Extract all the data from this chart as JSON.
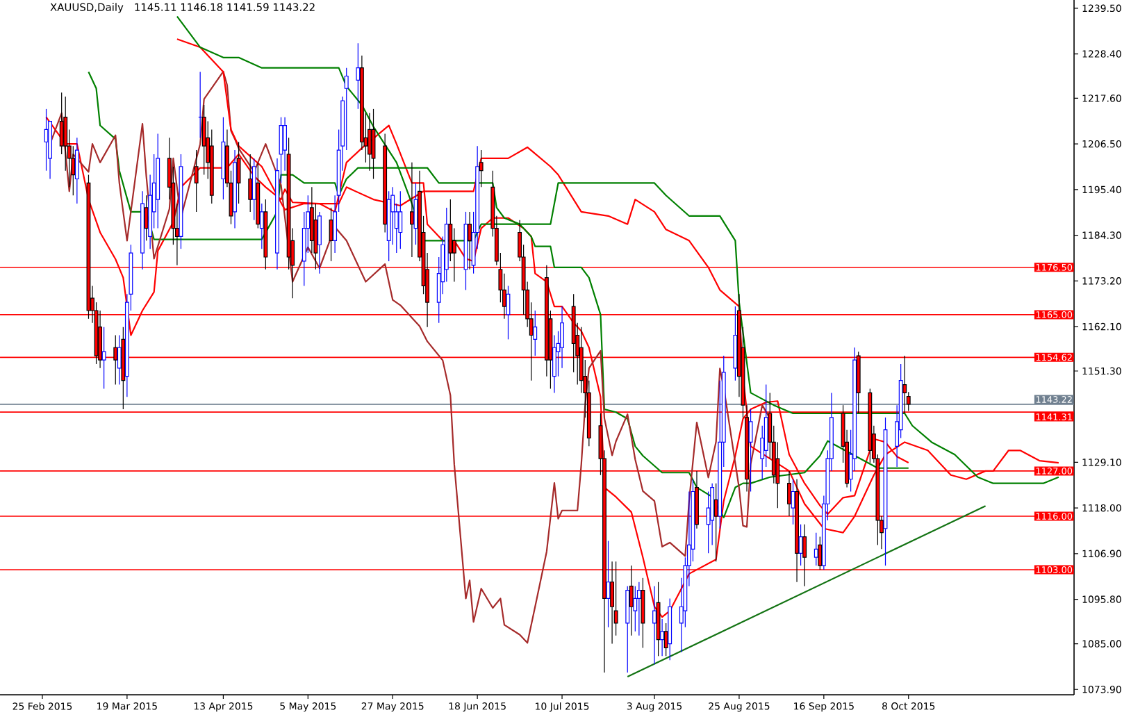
{
  "chart_data": {
    "type": "candlestick",
    "title": "XAUUSD,Daily",
    "subtitle": "1145.11 1146.18 1141.59 1143.22",
    "x": [
      "2015-02-26",
      "2015-02-27",
      "2015-03-02",
      "2015-03-03",
      "2015-03-04",
      "2015-03-05",
      "2015-03-06",
      "2015-03-09",
      "2015-03-10",
      "2015-03-11",
      "2015-03-12",
      "2015-03-13",
      "2015-03-16",
      "2015-03-17",
      "2015-03-18",
      "2015-03-19",
      "2015-03-20",
      "2015-03-23",
      "2015-03-24",
      "2015-03-25",
      "2015-03-26",
      "2015-03-27",
      "2015-03-30",
      "2015-03-31",
      "2015-04-01",
      "2015-04-02",
      "2015-04-06",
      "2015-04-07",
      "2015-04-08",
      "2015-04-09",
      "2015-04-10",
      "2015-04-13",
      "2015-04-14",
      "2015-04-15",
      "2015-04-16",
      "2015-04-17",
      "2015-04-20",
      "2015-04-21",
      "2015-04-22",
      "2015-04-23",
      "2015-04-24",
      "2015-04-27",
      "2015-04-28",
      "2015-04-29",
      "2015-04-30",
      "2015-05-01",
      "2015-05-04",
      "2015-05-05",
      "2015-05-06",
      "2015-05-07",
      "2015-05-08",
      "2015-05-11",
      "2015-05-12",
      "2015-05-13",
      "2015-05-14",
      "2015-05-15",
      "2015-05-18",
      "2015-05-19",
      "2015-05-20",
      "2015-05-21",
      "2015-05-22",
      "2015-05-25",
      "2015-05-26",
      "2015-05-27",
      "2015-05-28",
      "2015-05-29",
      "2015-06-01",
      "2015-06-02",
      "2015-06-03",
      "2015-06-04",
      "2015-06-05",
      "2015-06-08",
      "2015-06-09",
      "2015-06-10",
      "2015-06-11",
      "2015-06-12",
      "2015-06-15",
      "2015-06-16",
      "2015-06-17",
      "2015-06-18",
      "2015-06-19",
      "2015-06-22",
      "2015-06-23",
      "2015-06-24",
      "2015-06-25",
      "2015-06-26",
      "2015-06-29",
      "2015-06-30",
      "2015-07-01",
      "2015-07-02",
      "2015-07-03",
      "2015-07-06",
      "2015-07-07",
      "2015-07-08",
      "2015-07-09",
      "2015-07-10",
      "2015-07-13",
      "2015-07-14",
      "2015-07-15",
      "2015-07-16",
      "2015-07-17",
      "2015-07-20",
      "2015-07-21",
      "2015-07-22",
      "2015-07-23",
      "2015-07-24",
      "2015-07-27",
      "2015-07-28",
      "2015-07-29",
      "2015-07-30",
      "2015-07-31",
      "2015-08-03",
      "2015-08-04",
      "2015-08-05",
      "2015-08-06",
      "2015-08-07",
      "2015-08-10",
      "2015-08-11",
      "2015-08-12",
      "2015-08-13",
      "2015-08-14",
      "2015-08-17",
      "2015-08-18",
      "2015-08-19",
      "2015-08-20",
      "2015-08-21",
      "2015-08-24",
      "2015-08-25",
      "2015-08-26",
      "2015-08-27",
      "2015-08-28",
      "2015-08-31",
      "2015-09-01",
      "2015-09-02",
      "2015-09-03",
      "2015-09-04",
      "2015-09-07",
      "2015-09-08",
      "2015-09-09",
      "2015-09-10",
      "2015-09-11",
      "2015-09-14",
      "2015-09-15",
      "2015-09-16",
      "2015-09-17",
      "2015-09-18",
      "2015-09-21",
      "2015-09-22",
      "2015-09-23",
      "2015-09-24",
      "2015-09-25",
      "2015-09-28",
      "2015-09-29",
      "2015-09-30",
      "2015-10-01",
      "2015-10-02",
      "2015-10-05",
      "2015-10-06",
      "2015-10-07",
      "2015-10-08"
    ],
    "ohlc": [
      [
        1207,
        1215,
        1200,
        1210
      ],
      [
        1203,
        1212,
        1198,
        1212
      ],
      [
        1212,
        1219,
        1204,
        1206
      ],
      [
        1213,
        1218,
        1200,
        1206
      ],
      [
        1206,
        1210,
        1196,
        1203
      ],
      [
        1203,
        1206,
        1194,
        1199
      ],
      [
        1198,
        1208,
        1192,
        1205
      ],
      [
        1197,
        1199,
        1164,
        1166
      ],
      [
        1169,
        1172,
        1163,
        1166
      ],
      [
        1166,
        1168,
        1153,
        1155
      ],
      [
        1162,
        1166,
        1152,
        1154
      ],
      [
        1154,
        1162,
        1147,
        1156
      ],
      [
        1157,
        1160,
        1148,
        1154
      ],
      [
        1152,
        1160,
        1148,
        1157
      ],
      [
        1159,
        1162,
        1142,
        1149
      ],
      [
        1150,
        1170,
        1145,
        1168
      ],
      [
        1170,
        1182,
        1166,
        1180
      ],
      [
        1180,
        1195,
        1176,
        1192
      ],
      [
        1191,
        1194,
        1183,
        1186
      ],
      [
        1184,
        1199,
        1181,
        1194
      ],
      [
        1190,
        1204,
        1186,
        1197
      ],
      [
        1193,
        1209,
        1186,
        1203
      ],
      [
        1203,
        1208,
        1193,
        1196
      ],
      [
        1197,
        1201,
        1182,
        1186
      ],
      [
        1186,
        1192,
        1177,
        1184
      ],
      [
        1184,
        1204,
        1181,
        1201
      ],
      [
        1201,
        1205,
        1190,
        1197
      ],
      [
        1213,
        1224,
        1208,
        1213
      ],
      [
        1213,
        1216,
        1199,
        1206
      ],
      [
        1208,
        1212,
        1198,
        1202
      ],
      [
        1206,
        1210,
        1192,
        1194
      ],
      [
        1198,
        1213,
        1193,
        1207
      ],
      [
        1206,
        1210,
        1196,
        1197
      ],
      [
        1197,
        1200,
        1187,
        1189
      ],
      [
        1190,
        1205,
        1186,
        1202
      ],
      [
        1203,
        1207,
        1192,
        1197
      ],
      [
        1198,
        1204,
        1190,
        1193
      ],
      [
        1193,
        1203,
        1188,
        1201
      ],
      [
        1197,
        1202,
        1186,
        1187
      ],
      [
        1186,
        1192,
        1181,
        1190
      ],
      [
        1190,
        1193,
        1176,
        1179
      ],
      [
        1180,
        1203,
        1176,
        1200
      ],
      [
        1204,
        1213,
        1197,
        1211
      ],
      [
        1205,
        1213,
        1200,
        1211
      ],
      [
        1204,
        1208,
        1176,
        1179
      ],
      [
        1183,
        1186,
        1169,
        1177
      ],
      [
        1178,
        1190,
        1172,
        1186
      ],
      [
        1186,
        1194,
        1180,
        1190
      ],
      [
        1191,
        1196,
        1180,
        1183
      ],
      [
        1188,
        1192,
        1176,
        1180
      ],
      [
        1182,
        1190,
        1175,
        1189
      ],
      [
        1188,
        1191,
        1178,
        1183
      ],
      [
        1183,
        1194,
        1180,
        1190
      ],
      [
        1194,
        1210,
        1190,
        1205
      ],
      [
        1206,
        1218,
        1200,
        1217
      ],
      [
        1220,
        1225,
        1205,
        1223
      ],
      [
        1222,
        1231,
        1215,
        1225
      ],
      [
        1225,
        1228,
        1205,
        1207
      ],
      [
        1208,
        1214,
        1202,
        1206
      ],
      [
        1210,
        1214,
        1200,
        1204
      ],
      [
        1210,
        1215,
        1198,
        1203
      ],
      [
        1206,
        1209,
        1185,
        1187
      ],
      [
        1183,
        1195,
        1178,
        1193
      ],
      [
        1190,
        1196,
        1182,
        1194
      ],
      [
        1186,
        1192,
        1180,
        1190
      ],
      [
        1185,
        1195,
        1181,
        1190
      ],
      [
        1190,
        1202,
        1179,
        1187
      ],
      [
        1186,
        1197,
        1182,
        1193
      ],
      [
        1195,
        1200,
        1178,
        1179
      ],
      [
        1185,
        1189,
        1170,
        1172
      ],
      [
        1176,
        1180,
        1162,
        1168
      ],
      [
        1168,
        1179,
        1163,
        1175
      ],
      [
        1173,
        1184,
        1170,
        1182
      ],
      [
        1176,
        1191,
        1173,
        1187
      ],
      [
        1187,
        1193,
        1178,
        1180
      ],
      [
        1183,
        1186,
        1173,
        1180
      ],
      [
        1176,
        1190,
        1171,
        1187
      ],
      [
        1187,
        1190,
        1176,
        1183
      ],
      [
        1177,
        1190,
        1175,
        1185
      ],
      [
        1185,
        1206,
        1181,
        1201
      ],
      [
        1202,
        1205,
        1196,
        1200
      ],
      [
        1196,
        1200,
        1184,
        1186
      ],
      [
        1186,
        1189,
        1177,
        1178
      ],
      [
        1176,
        1180,
        1168,
        1171
      ],
      [
        1171,
        1175,
        1164,
        1167
      ],
      [
        1165,
        1172,
        1159,
        1170
      ],
      [
        1185,
        1188,
        1178,
        1179
      ],
      [
        1179,
        1182,
        1165,
        1171
      ],
      [
        1171,
        1173,
        1162,
        1164
      ],
      [
        1164,
        1168,
        1149,
        1160
      ],
      [
        1159,
        1166,
        1155,
        1162
      ],
      [
        1174,
        1177,
        1150,
        1154
      ],
      [
        1164,
        1166,
        1147,
        1154
      ],
      [
        1150,
        1160,
        1146,
        1157
      ],
      [
        1156,
        1161,
        1150,
        1158
      ],
      [
        1157,
        1167,
        1152,
        1163
      ],
      [
        1167,
        1170,
        1151,
        1158
      ],
      [
        1160,
        1163,
        1148,
        1155
      ],
      [
        1157,
        1162,
        1146,
        1149
      ],
      [
        1150,
        1154,
        1140,
        1146
      ],
      [
        1146,
        1149,
        1133,
        1135
      ],
      [
        1138,
        1141,
        1126,
        1130
      ],
      [
        1130,
        1132,
        1078,
        1096
      ],
      [
        1096,
        1110,
        1089,
        1100
      ],
      [
        1100,
        1105,
        1085,
        1094
      ],
      [
        1093,
        1105,
        1087,
        1090
      ],
      [
        1090,
        1099,
        1078,
        1098
      ],
      [
        1099,
        1104,
        1087,
        1094
      ],
      [
        1093,
        1099,
        1088,
        1096
      ],
      [
        1096,
        1100,
        1087,
        1098
      ],
      [
        1098,
        1101,
        1084,
        1090
      ],
      [
        1090,
        1099,
        1080,
        1093
      ],
      [
        1095,
        1100,
        1082,
        1086
      ],
      [
        1086,
        1091,
        1082,
        1088
      ],
      [
        1088,
        1090,
        1082,
        1084
      ],
      [
        1085,
        1096,
        1081,
        1094
      ],
      [
        1090,
        1101,
        1083,
        1094
      ],
      [
        1093,
        1106,
        1089,
        1104
      ],
      [
        1104,
        1122,
        1099,
        1109
      ],
      [
        1108,
        1125,
        1105,
        1122
      ],
      [
        1123,
        1127,
        1113,
        1114
      ],
      [
        1114,
        1122,
        1107,
        1118
      ],
      [
        1115,
        1124,
        1109,
        1123
      ],
      [
        1120,
        1124,
        1105,
        1116
      ],
      [
        1116,
        1149,
        1113,
        1134
      ],
      [
        1134,
        1155,
        1128,
        1151
      ],
      [
        1152,
        1167,
        1149,
        1160
      ],
      [
        1166,
        1170,
        1145,
        1150
      ],
      [
        1157,
        1162,
        1140,
        1143
      ],
      [
        1140,
        1143,
        1122,
        1125
      ],
      [
        1134,
        1142,
        1122,
        1139
      ],
      [
        1130,
        1138,
        1125,
        1135
      ],
      [
        1132,
        1148,
        1128,
        1140
      ],
      [
        1141,
        1146,
        1130,
        1134
      ],
      [
        1134,
        1138,
        1124,
        1126
      ],
      [
        1130,
        1134,
        1118,
        1124
      ],
      [
        1124,
        1127,
        1116,
        1119
      ],
      [
        1118,
        1125,
        1114,
        1122
      ],
      [
        1122,
        1125,
        1100,
        1107
      ],
      [
        1107,
        1114,
        1104,
        1111
      ],
      [
        1111,
        1114,
        1099,
        1106
      ],
      [
        1106,
        1112,
        1104,
        1108
      ],
      [
        1109,
        1111,
        1103,
        1104
      ],
      [
        1104,
        1121,
        1103,
        1119
      ],
      [
        1119,
        1132,
        1115,
        1130
      ],
      [
        1130,
        1146,
        1127,
        1140
      ],
      [
        1141,
        1143,
        1129,
        1133
      ],
      [
        1134,
        1137,
        1123,
        1124
      ],
      [
        1125,
        1137,
        1122,
        1131
      ],
      [
        1130,
        1157,
        1127,
        1154
      ],
      [
        1155,
        1156,
        1141,
        1146
      ],
      [
        1146,
        1147,
        1129,
        1132
      ],
      [
        1136,
        1138,
        1129,
        1130
      ],
      [
        1130,
        1131,
        1109,
        1115
      ],
      [
        1115,
        1116,
        1108,
        1112
      ],
      [
        1113,
        1140,
        1104,
        1137
      ],
      [
        1133,
        1143,
        1128,
        1139
      ],
      [
        1137,
        1153,
        1135,
        1149
      ],
      [
        1148,
        1155,
        1141,
        1146
      ],
      [
        1145.11,
        1146.18,
        1141.59,
        1143.22
      ]
    ],
    "series": [
      {
        "type": "line",
        "color": "#ff0000",
        "x": [
          "2015-02-26",
          "2015-03-03",
          "2015-03-06",
          "2015-03-09",
          "2015-03-12",
          "2015-03-16",
          "2015-03-18",
          "2015-03-20",
          "2015-03-23",
          "2015-03-26",
          "2015-03-27",
          "2015-03-31",
          "2015-04-02",
          "2015-04-07",
          "2015-04-14",
          "2015-04-17",
          "2015-04-21",
          "2015-04-24",
          "2015-04-28",
          "2015-04-29",
          "2015-05-01",
          "2015-05-08",
          "2015-05-12",
          "2015-05-15",
          "2015-05-19",
          "2015-05-26",
          "2015-05-28",
          "2015-06-01",
          "2015-06-04",
          "2015-06-05",
          "2015-06-09",
          "2015-06-12",
          "2015-06-15",
          "2015-06-17",
          "2015-06-19",
          "2015-06-22",
          "2015-06-26",
          "2015-06-30",
          "2015-07-02",
          "2015-07-03",
          "2015-07-06",
          "2015-07-08",
          "2015-07-10",
          "2015-07-13",
          "2015-07-15",
          "2015-07-17",
          "2015-07-20",
          "2015-07-21",
          "2015-07-24",
          "2015-07-28",
          "2015-07-31",
          "2015-08-03",
          "2015-08-05",
          "2015-08-07",
          "2015-08-12",
          "2015-08-19",
          "2015-08-21",
          "2015-08-24",
          "2015-08-26",
          "2015-08-28",
          "2015-09-01",
          "2015-09-04",
          "2015-09-07",
          "2015-09-11",
          "2015-09-15",
          "2015-09-17",
          "2015-09-21",
          "2015-09-24",
          "2015-09-29",
          "2015-10-02",
          "2015-10-05",
          "2015-10-08"
        ],
        "values": [
          1213,
          1206.5,
          1206.5,
          1193,
          1185,
          1178.5,
          1174,
          1160,
          1166,
          1170.5,
          1180.5,
          1187.5,
          1196,
          1200.7,
          1200.7,
          1204,
          1198.7,
          1196,
          1193,
          1195.5,
          1192.3,
          1192,
          1190,
          1202,
          1205.5,
          1211,
          1206.5,
          1197,
          1197,
          1187,
          1183,
          1183,
          1178.6,
          1178,
          1186,
          1188.5,
          1188.5,
          1186,
          1184,
          1175,
          1173,
          1167,
          1167,
          1163,
          1161,
          1157,
          1145,
          1123,
          1120.7,
          1117,
          1106,
          1094,
          1091.5,
          1093,
          1102,
          1105.5,
          1119.7,
          1130.7,
          1139.7,
          1142,
          1143.7,
          1144,
          1131,
          1124,
          1118.6,
          1116.5,
          1120.5,
          1121,
          1134.8,
          1134,
          1130.5,
          1129
        ]
      },
      {
        "type": "line",
        "color": "#008000",
        "x": [
          "2015-03-09",
          "2015-03-11",
          "2015-03-12",
          "2015-03-16",
          "2015-03-17",
          "2015-03-19",
          "2015-03-20",
          "2015-03-24",
          "2015-03-26",
          "2015-04-23",
          "2015-04-27",
          "2015-04-28",
          "2015-05-01",
          "2015-05-04",
          "2015-05-12",
          "2015-05-13",
          "2015-05-15",
          "2015-05-18",
          "2015-06-05",
          "2015-06-08",
          "2015-06-22",
          "2015-06-23",
          "2015-06-25",
          "2015-06-29",
          "2015-07-02",
          "2015-07-03",
          "2015-07-07",
          "2015-07-08",
          "2015-07-15",
          "2015-07-17",
          "2015-07-20",
          "2015-07-21",
          "2015-07-24",
          "2015-07-27",
          "2015-07-29",
          "2015-07-31",
          "2015-08-05",
          "2015-08-12",
          "2015-08-14",
          "2015-08-18",
          "2015-08-21",
          "2015-08-24",
          "2015-08-26",
          "2015-08-28",
          "2015-09-02",
          "2015-09-11",
          "2015-09-15",
          "2015-09-17",
          "2015-09-29",
          "2015-09-30",
          "2015-10-08"
        ],
        "values": [
          1224,
          1220,
          1211,
          1207.7,
          1200,
          1193.3,
          1190,
          1190,
          1183.3,
          1183.3,
          1190,
          1199,
          1199,
          1197,
          1197,
          1194,
          1198,
          1200.7,
          1200.7,
          1197,
          1197,
          1191,
          1188.5,
          1187,
          1184,
          1181.6,
          1181.6,
          1176.5,
          1176.5,
          1174,
          1165,
          1142,
          1141.3,
          1139.7,
          1133,
          1130.7,
          1126.6,
          1126.6,
          1123,
          1120.7,
          1115.7,
          1123,
          1124,
          1124,
          1125.5,
          1126.6,
          1130.7,
          1134.3,
          null,
          1127.7,
          1127.7
        ]
      },
      {
        "type": "line",
        "color": "#a52a2a",
        "x": [
          "2015-02-27",
          "2015-03-02",
          "2015-03-04",
          "2015-03-05",
          "2015-03-09",
          "2015-03-10",
          "2015-03-12",
          "2015-03-16",
          "2015-03-17",
          "2015-03-19",
          "2015-03-23",
          "2015-03-24",
          "2015-03-26",
          "2015-03-30",
          "2015-03-31",
          "2015-04-02",
          "2015-04-07",
          "2015-04-08",
          "2015-04-13",
          "2015-04-14",
          "2015-04-15",
          "2015-04-16",
          "2015-04-17",
          "2015-04-21",
          "2015-04-24",
          "2015-04-28",
          "2015-05-01",
          "2015-05-05",
          "2015-05-08",
          "2015-05-12",
          "2015-05-15",
          "2015-05-20",
          "2015-05-25",
          "2015-05-27",
          "2015-05-29",
          "2015-06-03",
          "2015-06-05",
          "2015-06-09",
          "2015-06-11",
          "2015-06-12",
          "2015-06-15",
          "2015-06-16",
          "2015-06-17",
          "2015-06-19",
          "2015-06-22",
          "2015-06-24",
          "2015-06-25",
          "2015-06-29",
          "2015-07-01",
          "2015-07-03",
          "2015-07-06",
          "2015-07-08",
          "2015-07-09",
          "2015-07-10",
          "2015-07-14",
          "2015-07-15",
          "2015-07-16",
          "2015-07-17",
          "2015-07-20",
          "2015-07-21",
          "2015-07-23",
          "2015-07-24",
          "2015-07-27",
          "2015-07-29",
          "2015-07-31",
          "2015-08-03",
          "2015-08-05",
          "2015-08-07",
          "2015-08-11",
          "2015-08-12",
          "2015-08-14",
          "2015-08-17",
          "2015-08-19",
          "2015-08-20",
          "2015-08-21",
          "2015-08-25",
          "2015-08-26",
          "2015-08-27",
          "2015-08-28",
          "2015-08-31",
          "2015-09-02"
        ],
        "values": [
          1206.5,
          1214,
          1195,
          1204,
          1199.7,
          1206.5,
          1202,
          1208.6,
          1197,
          1183,
          1211.4,
          1198.7,
          1178.6,
          1190.7,
          1203,
          1188.6,
          1206.5,
          1217.4,
          1224.1,
          1220.8,
          1209.7,
          1207.7,
          1205.4,
          1199.7,
          1206.5,
          1196.5,
          1173,
          1181.4,
          1176.3,
          1186.3,
          1183,
          1173,
          1177.3,
          1168.6,
          1167.3,
          1162.2,
          1158.5,
          1153.9,
          1145.4,
          1128.6,
          1096,
          1100.4,
          1090.3,
          1098.4,
          1093.7,
          1096,
          1089.6,
          1087.2,
          1085.2,
          1094,
          1107.4,
          1124.1,
          1115.4,
          1117.4,
          1117.4,
          1128.6,
          1143,
          1152,
          1156.2,
          1139.8,
          1130.8,
          1134.2,
          1140.8,
          1129.8,
          1122.1,
          1119.7,
          1108.6,
          1109.6,
          1106.3,
          1119.7,
          1138.8,
          1125.4,
          1134.1,
          1151.9,
          1147.3,
          1122.8,
          1113.7,
          1113.4,
          1128.7,
          1143,
          1139.8
        ]
      },
      {
        "type": "line",
        "color": "#ff0000",
        "x": [
          "2015-04-01",
          "2015-04-07",
          "2015-04-13",
          "2015-04-15",
          "2015-04-17",
          "2015-04-23",
          "2015-04-29",
          "2015-05-04",
          "2015-05-13",
          "2015-05-15",
          "2015-05-22",
          "2015-05-29",
          "2015-06-04",
          "2015-06-11",
          "2015-06-17",
          "2015-06-19",
          "2015-06-26",
          "2015-07-01",
          "2015-07-07",
          "2015-07-09",
          "2015-07-15",
          "2015-07-22",
          "2015-07-27",
          "2015-07-29",
          "2015-08-03",
          "2015-08-06",
          "2015-08-12",
          "2015-08-17",
          "2015-08-20",
          "2015-08-25",
          "2015-08-26",
          "2015-08-28",
          "2015-09-02",
          "2015-09-07",
          "2015-09-11",
          "2015-09-16",
          "2015-09-21",
          "2015-09-24",
          "2015-09-29",
          "2015-10-02",
          "2015-10-07",
          "2015-10-13",
          "2015-10-19",
          "2015-10-23",
          "2015-10-28",
          "2015-10-30",
          "2015-11-03",
          "2015-11-06",
          "2015-11-11",
          "2015-11-16"
        ],
        "values": [
          1232,
          1230,
          1224,
          1210,
          1206,
          1201,
          1190.5,
          1192,
          1192,
          1196,
          1193,
          1191.5,
          1195,
          1195,
          1195,
          1203,
          1203,
          1205.7,
          1201,
          1199,
          1190,
          1189,
          1187,
          1193,
          1190,
          1185.7,
          1183,
          1176.5,
          1171,
          1167,
          1150,
          1133,
          1130,
          1127,
          1119,
          1113,
          1112,
          1116,
          1126,
          1131,
          1134,
          1132,
          1126,
          1125,
          1127,
          1127,
          1132,
          1132,
          1129.5,
          1129
        ]
      },
      {
        "type": "line",
        "color": "#008000",
        "x": [
          "2015-04-01",
          "2015-04-07",
          "2015-04-13",
          "2015-04-17",
          "2015-04-23",
          "2015-05-13",
          "2015-05-15",
          "2015-05-19",
          "2015-05-22",
          "2015-05-28",
          "2015-06-01",
          "2015-06-04",
          "2015-06-17",
          "2015-06-19",
          "2015-07-07",
          "2015-07-09",
          "2015-07-17",
          "2015-08-03",
          "2015-08-06",
          "2015-08-12",
          "2015-08-20",
          "2015-08-24",
          "2015-08-25",
          "2015-08-26",
          "2015-08-28",
          "2015-09-03",
          "2015-09-08",
          "2015-10-07",
          "2015-10-09",
          "2015-10-14",
          "2015-10-20",
          "2015-10-26",
          "2015-10-30",
          "2015-11-12",
          "2015-11-16"
        ],
        "values": [
          1237.5,
          1230,
          1227.5,
          1227.5,
          1225,
          1225,
          1220.5,
          1216,
          1210.7,
          1202,
          1192,
          1183,
          1183,
          1187,
          1187,
          1197,
          1197,
          1197,
          1194,
          1189,
          1189,
          1183,
          1168,
          null,
          1146,
          1143,
          1141,
          1141,
          1138,
          1134,
          1131,
          1125.5,
          1124,
          1124,
          1125.5
        ]
      },
      {
        "type": "line",
        "color": "#137313",
        "x": [
          "2015-07-27",
          "2015-10-28"
        ],
        "values": [
          1077,
          1118.5
        ]
      }
    ],
    "ref_lines": [
      {
        "axis": "y",
        "value": 1176.5,
        "label": "1176.50",
        "color": "#ff0000"
      },
      {
        "axis": "y",
        "value": 1165.0,
        "label": "1165.00",
        "color": "#ff0000"
      },
      {
        "axis": "y",
        "value": 1154.62,
        "label": "1154.62",
        "color": "#ff0000"
      },
      {
        "axis": "y",
        "value": 1143.22,
        "label": "1143.22",
        "color": "#708090"
      },
      {
        "axis": "y",
        "value": 1141.31,
        "label": "1141.31",
        "color": "#ff0000"
      },
      {
        "axis": "y",
        "value": 1127.0,
        "label": "1127.00",
        "color": "#ff0000"
      },
      {
        "axis": "y",
        "value": 1116.0,
        "label": "1116.00",
        "color": "#ff0000"
      },
      {
        "axis": "y",
        "value": 1103.0,
        "label": "1103.00",
        "color": "#ff0000"
      }
    ],
    "xlim": [
      "2015-02-14",
      "2015-11-20"
    ],
    "ylim": [
      1072.6,
      1241.5
    ],
    "xticks": [
      {
        "value": "2015-02-25",
        "label": "25 Feb 2015"
      },
      {
        "value": "2015-03-19",
        "label": "19 Mar 2015"
      },
      {
        "value": "2015-04-13",
        "label": "13 Apr 2015"
      },
      {
        "value": "2015-05-05",
        "label": "5 May 2015"
      },
      {
        "value": "2015-05-27",
        "label": "27 May 2015"
      },
      {
        "value": "2015-06-18",
        "label": "18 Jun 2015"
      },
      {
        "value": "2015-07-10",
        "label": "10 Jul 2015"
      },
      {
        "value": "2015-08-03",
        "label": "3 Aug 2015"
      },
      {
        "value": "2015-08-25",
        "label": "25 Aug 2015"
      },
      {
        "value": "2015-09-16",
        "label": "16 Sep 2015"
      },
      {
        "value": "2015-10-08",
        "label": "8 Oct 2015"
      }
    ],
    "yticks": [
      {
        "value": 1239.5,
        "label": "1239.50"
      },
      {
        "value": 1228.4,
        "label": "1228.40"
      },
      {
        "value": 1217.6,
        "label": "1217.60"
      },
      {
        "value": 1206.5,
        "label": "1206.50"
      },
      {
        "value": 1195.4,
        "label": "1195.40"
      },
      {
        "value": 1184.3,
        "label": "1184.30"
      },
      {
        "value": 1173.2,
        "label": "1173.20"
      },
      {
        "value": 1162.1,
        "label": "1162.10"
      },
      {
        "value": 1151.3,
        "label": "1151.30"
      },
      {
        "value": 1129.1,
        "label": "1129.10"
      },
      {
        "value": 1118.0,
        "label": "1118.00"
      },
      {
        "value": 1106.9,
        "label": "1106.90"
      },
      {
        "value": 1095.8,
        "label": "1095.80"
      },
      {
        "value": 1085.0,
        "label": "1085.00"
      },
      {
        "value": 1073.9,
        "label": "1073.90"
      }
    ]
  }
}
